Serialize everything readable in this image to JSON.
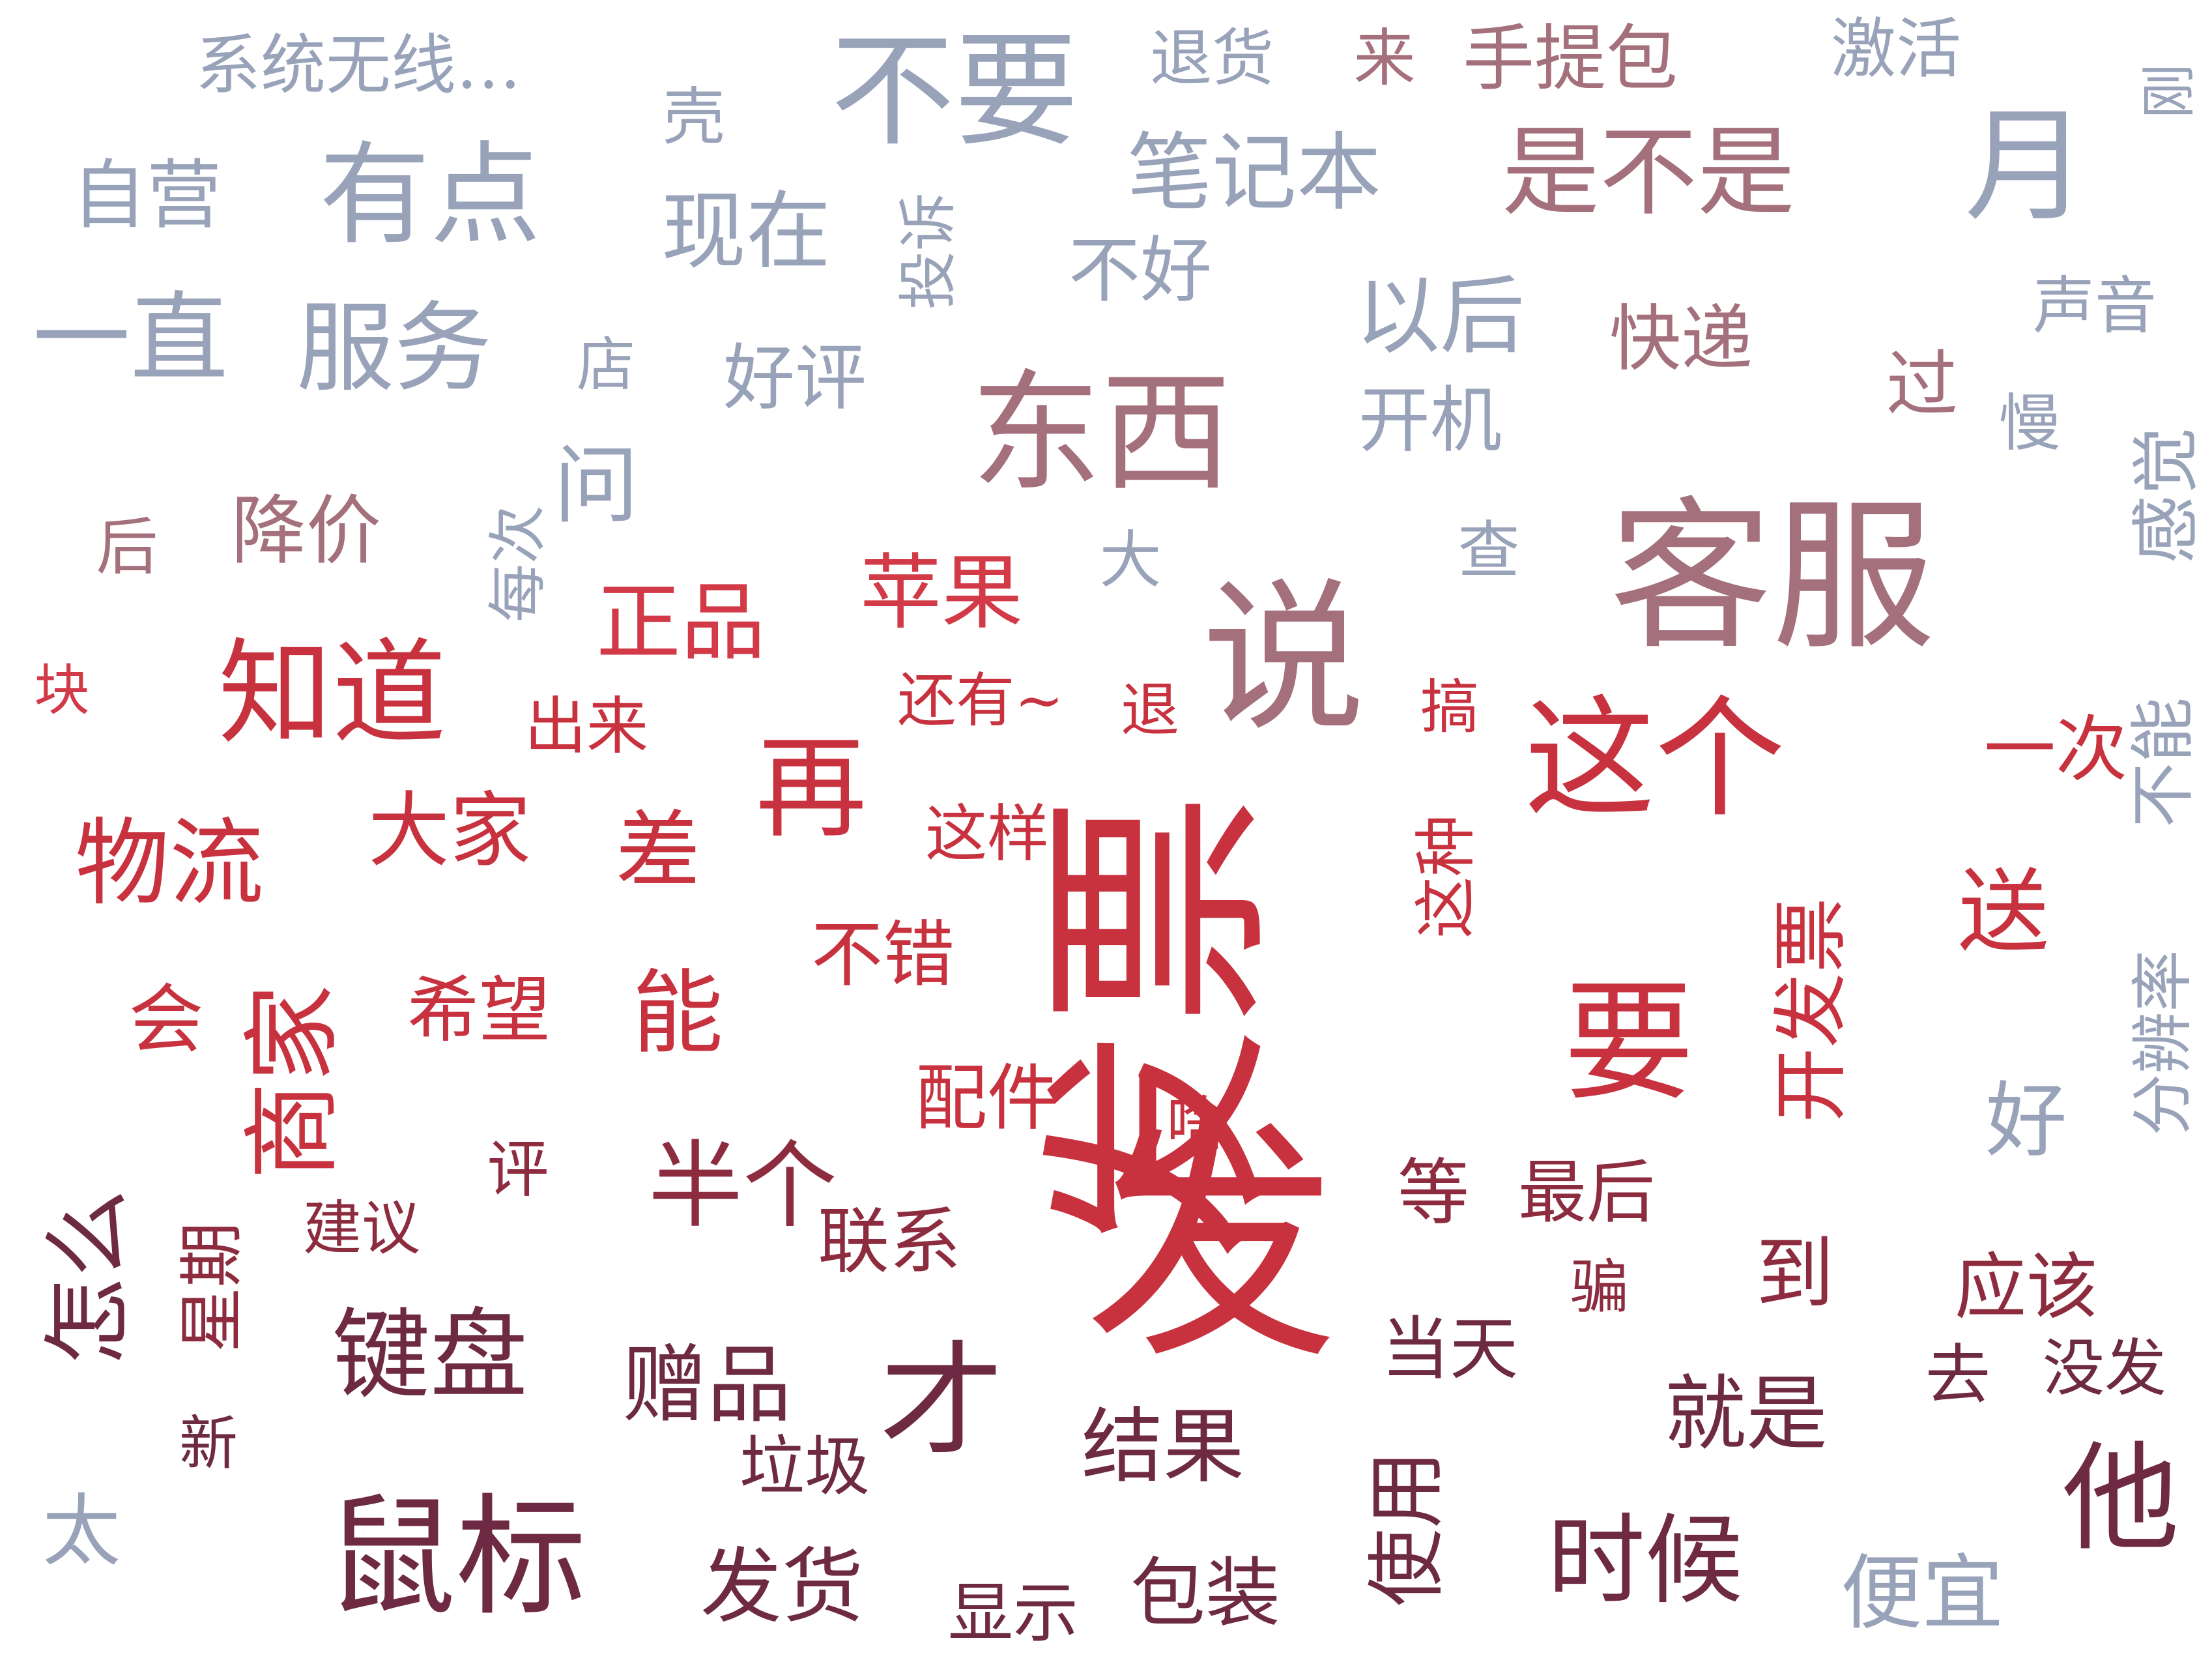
{
  "chart_data": {
    "type": "wordcloud",
    "colors": {
      "background": "#ffffff",
      "gray_blue": "#98a2b9",
      "mauve": "#a4707c",
      "red": "#d33a48",
      "crimson": "#c8323f",
      "dark_red": "#8e2c3f",
      "maroon": "#7d2a40",
      "deep_maroon": "#6e2a42"
    },
    "words": [
      {
        "text": "发票",
        "color": "crimson",
        "vertical": true
      },
      {
        "text": "发",
        "color": "crimson"
      },
      {
        "text": "客服",
        "color": "mauve"
      },
      {
        "text": "说",
        "color": "mauve"
      },
      {
        "text": "东西",
        "color": "mauve"
      },
      {
        "text": "这个",
        "color": "crimson"
      },
      {
        "text": "要",
        "color": "crimson"
      },
      {
        "text": "知道",
        "color": "crimson"
      },
      {
        "text": "鼠标",
        "color": "deep_maroon"
      },
      {
        "text": "他",
        "color": "deep_maroon"
      },
      {
        "text": "不要",
        "color": "gray_blue"
      },
      {
        "text": "有点",
        "color": "gray_blue"
      },
      {
        "text": "一直",
        "color": "gray_blue"
      },
      {
        "text": "服务",
        "color": "gray_blue"
      },
      {
        "text": "才",
        "color": "deep_maroon"
      },
      {
        "text": "商家",
        "color": "crimson",
        "vertical": true
      },
      {
        "text": "再",
        "color": "crimson"
      },
      {
        "text": "月",
        "color": "gray_blue"
      },
      {
        "text": "是不是",
        "color": "mauve"
      },
      {
        "text": "时候",
        "color": "deep_maroon"
      },
      {
        "text": "键盘",
        "color": "deep_maroon"
      },
      {
        "text": "半个",
        "color": "dark_red"
      },
      {
        "text": "物流",
        "color": "crimson"
      },
      {
        "text": "能",
        "color": "crimson"
      },
      {
        "text": "怎么",
        "color": "deep_maroon",
        "vertical": true
      },
      {
        "text": "苹果",
        "color": "red"
      },
      {
        "text": "正品",
        "color": "red"
      },
      {
        "text": "差",
        "color": "crimson"
      },
      {
        "text": "大家",
        "color": "crimson"
      },
      {
        "text": "问",
        "color": "gray_blue"
      },
      {
        "text": "以后",
        "color": "gray_blue"
      },
      {
        "text": "现在",
        "color": "gray_blue"
      },
      {
        "text": "笔记本",
        "color": "gray_blue"
      },
      {
        "text": "自营",
        "color": "gray_blue"
      },
      {
        "text": "降价",
        "color": "mauve"
      },
      {
        "text": "快递",
        "color": "mauve"
      },
      {
        "text": "开机",
        "color": "gray_blue"
      },
      {
        "text": "不好",
        "color": "gray_blue"
      },
      {
        "text": "好评",
        "color": "gray_blue"
      },
      {
        "text": "过",
        "color": "mauve"
      },
      {
        "text": "手提包",
        "color": "mauve"
      },
      {
        "text": "系统无线…",
        "color": "gray_blue"
      },
      {
        "text": "激活",
        "color": "gray_blue"
      },
      {
        "text": "退货",
        "color": "gray_blue"
      },
      {
        "text": "来",
        "color": "mauve"
      },
      {
        "text": "壳",
        "color": "gray_blue"
      },
      {
        "text": "投诉",
        "color": "gray_blue",
        "vertical": true
      },
      {
        "text": "店",
        "color": "gray_blue"
      },
      {
        "text": "后",
        "color": "mauve"
      },
      {
        "text": "每次",
        "color": "gray_blue",
        "vertical": true
      },
      {
        "text": "大",
        "color": "gray_blue"
      },
      {
        "text": "查",
        "color": "gray_blue"
      },
      {
        "text": "刚",
        "color": "gray_blue",
        "vertical": true
      },
      {
        "text": "声音",
        "color": "gray_blue"
      },
      {
        "text": "慢",
        "color": "gray_blue"
      },
      {
        "text": "感觉",
        "color": "gray_blue",
        "vertical": true
      },
      {
        "text": "不能",
        "color": "gray_blue",
        "vertical": true
      },
      {
        "text": "一次",
        "color": "crimson"
      },
      {
        "text": "开发票",
        "color": "crimson",
        "vertical": true
      },
      {
        "text": "送",
        "color": "crimson"
      },
      {
        "text": "分辨率",
        "color": "gray_blue",
        "vertical": true
      },
      {
        "text": "好",
        "color": "gray_blue"
      },
      {
        "text": "块",
        "color": "red"
      },
      {
        "text": "出来",
        "color": "crimson"
      },
      {
        "text": "还有~",
        "color": "crimson"
      },
      {
        "text": "退",
        "color": "crimson"
      },
      {
        "text": "搞",
        "color": "crimson"
      },
      {
        "text": "这样",
        "color": "crimson"
      },
      {
        "text": "这种",
        "color": "crimson",
        "vertical": true
      },
      {
        "text": "会",
        "color": "crimson"
      },
      {
        "text": "希望",
        "color": "crimson"
      },
      {
        "text": "不错",
        "color": "crimson"
      },
      {
        "text": "配件",
        "color": "crimson"
      },
      {
        "text": "啥",
        "color": "crimson"
      },
      {
        "text": "星期",
        "color": "dark_red",
        "vertical": true
      },
      {
        "text": "评",
        "color": "dark_red"
      },
      {
        "text": "建议",
        "color": "dark_red"
      },
      {
        "text": "联系",
        "color": "dark_red"
      },
      {
        "text": "等",
        "color": "dark_red"
      },
      {
        "text": "最后",
        "color": "dark_red"
      },
      {
        "text": "到",
        "color": "dark_red"
      },
      {
        "text": "骗",
        "color": "dark_red"
      },
      {
        "text": "应该",
        "color": "dark_red"
      },
      {
        "text": "赠品",
        "color": "deep_maroon"
      },
      {
        "text": "新",
        "color": "deep_maroon"
      },
      {
        "text": "太",
        "color": "gray_blue"
      },
      {
        "text": "垃圾",
        "color": "deep_maroon"
      },
      {
        "text": "结果",
        "color": "deep_maroon"
      },
      {
        "text": "当天",
        "color": "deep_maroon"
      },
      {
        "text": "使用",
        "color": "deep_maroon",
        "vertical": true
      },
      {
        "text": "就是",
        "color": "deep_maroon"
      },
      {
        "text": "去",
        "color": "deep_maroon"
      },
      {
        "text": "没发",
        "color": "deep_maroon"
      },
      {
        "text": "发货",
        "color": "deep_maroon"
      },
      {
        "text": "显示",
        "color": "deep_maroon"
      },
      {
        "text": "包装",
        "color": "deep_maroon"
      },
      {
        "text": "便宜",
        "color": "gray_blue"
      }
    ]
  }
}
